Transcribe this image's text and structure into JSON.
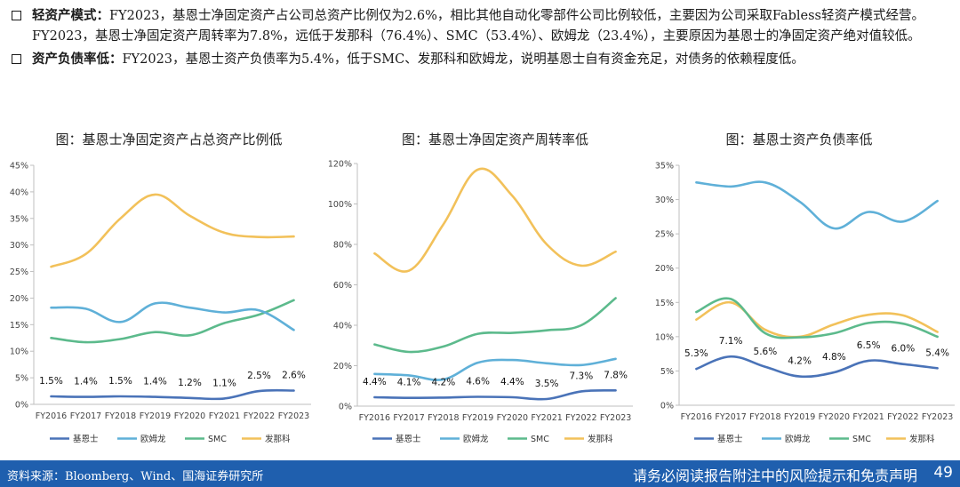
{
  "bullets": [
    {
      "lead": "轻资产模式：",
      "text": "FY2023，基恩士净固定资产占公司总资产比例仅为2.6%，相比其他自动化零部件公司比例较低，主要因为公司采取Fabless轻资产模式经营。FY2023，基恩士净固定资产周转率为7.8%，远低于发那科（76.4%）、SMC（53.4%）、欧姆龙（23.4%），主要原因为基恩士的净固定资产绝对值较低。"
    },
    {
      "lead": "资产负债率低：",
      "text": "FY2023，基恩士资产负债率为5.4%，低于SMC、发那科和欧姆龙，说明基恩士自有资金充足，对债务的依赖程度低。"
    }
  ],
  "colors": {
    "基恩士": "#4a73b8",
    "欧姆龙": "#5fb0d8",
    "SMC": "#5cba8c",
    "发那科": "#f2c15a",
    "footer": "#1f5fae"
  },
  "chart_data": [
    {
      "type": "line",
      "title": "图：基恩士净固定资产占总资产比例低",
      "categories": [
        "FY2016",
        "FY2017",
        "FY2018",
        "FY2019",
        "FY2020",
        "FY2021",
        "FY2022",
        "FY2023"
      ],
      "ylim": [
        0,
        45
      ],
      "yticks": [
        0,
        5,
        10,
        15,
        20,
        25,
        30,
        35,
        40,
        45
      ],
      "ytick_suffix": "%",
      "series": [
        {
          "name": "基恩士",
          "values": [
            1.5,
            1.4,
            1.5,
            1.4,
            1.2,
            1.1,
            2.5,
            2.6
          ],
          "labels": [
            "1.5%",
            "1.4%",
            "1.5%",
            "1.4%",
            "1.2%",
            "1.1%",
            "2.5%",
            "2.6%"
          ]
        },
        {
          "name": "欧姆龙",
          "values": [
            18.2,
            18.0,
            15.5,
            19.0,
            18.2,
            17.3,
            17.7,
            14.0
          ]
        },
        {
          "name": "SMC",
          "values": [
            12.5,
            11.7,
            12.3,
            13.6,
            13.0,
            15.3,
            16.9,
            19.6
          ]
        },
        {
          "name": "发那科",
          "values": [
            25.9,
            28.3,
            35.0,
            39.5,
            35.5,
            32.3,
            31.5,
            31.6
          ]
        }
      ],
      "legend": [
        "基恩士",
        "欧姆龙",
        "SMC",
        "发那科"
      ],
      "legend_position": "bottom",
      "grid": false
    },
    {
      "type": "line",
      "title": "图：基恩士净固定资产周转率低",
      "categories": [
        "FY2016",
        "FY2017",
        "FY2018",
        "FY2019",
        "FY2020",
        "FY2021",
        "FY2022",
        "FY2023"
      ],
      "ylim": [
        0,
        120
      ],
      "yticks": [
        0,
        20,
        40,
        60,
        80,
        100,
        120
      ],
      "ytick_suffix": "%",
      "series": [
        {
          "name": "基恩士",
          "values": [
            4.4,
            4.1,
            4.2,
            4.6,
            4.4,
            3.5,
            7.3,
            7.8
          ],
          "labels": [
            "4.4%",
            "4.1%",
            "4.2%",
            "4.6%",
            "4.4%",
            "3.5%",
            "7.3%",
            "7.8%"
          ]
        },
        {
          "name": "欧姆龙",
          "values": [
            15.9,
            15.2,
            13.2,
            21.5,
            22.8,
            21.2,
            20.3,
            23.4
          ]
        },
        {
          "name": "SMC",
          "values": [
            30.5,
            26.8,
            29.5,
            35.8,
            36.2,
            37.5,
            40.0,
            53.4
          ]
        },
        {
          "name": "发那科",
          "values": [
            75.5,
            67.0,
            90.0,
            117.0,
            104.0,
            80.0,
            69.5,
            76.4
          ]
        }
      ],
      "legend": [
        "基恩士",
        "欧姆龙",
        "SMC",
        "发那科"
      ],
      "legend_position": "bottom",
      "grid": false
    },
    {
      "type": "line",
      "title": "图：基恩士资产负债率低",
      "categories": [
        "FY2016",
        "FY2017",
        "FY2018",
        "FY2019",
        "FY2020",
        "FY2021",
        "FY2022",
        "FY2023"
      ],
      "ylim": [
        0,
        35
      ],
      "yticks": [
        0,
        5,
        10,
        15,
        20,
        25,
        30,
        35
      ],
      "ytick_suffix": "%",
      "series": [
        {
          "name": "基恩士",
          "values": [
            5.3,
            7.1,
            5.6,
            4.2,
            4.8,
            6.5,
            6.0,
            5.4
          ],
          "labels": [
            "5.3%",
            "7.1%",
            "5.6%",
            "4.2%",
            "4.8%",
            "6.5%",
            "6.0%",
            "5.4%"
          ]
        },
        {
          "name": "欧姆龙",
          "values": [
            32.5,
            31.9,
            32.5,
            29.7,
            25.8,
            28.2,
            26.8,
            29.8
          ]
        },
        {
          "name": "SMC",
          "values": [
            13.6,
            15.5,
            10.5,
            9.9,
            10.5,
            12.0,
            11.9,
            10.0
          ]
        },
        {
          "name": "发那科",
          "values": [
            12.5,
            15.0,
            11.0,
            10.0,
            11.8,
            13.2,
            13.1,
            10.7
          ]
        }
      ],
      "legend": [
        "基恩士",
        "欧姆龙",
        "SMC",
        "发那科"
      ],
      "legend_position": "bottom",
      "grid": false
    }
  ],
  "footer": {
    "source": "资料来源：Bloomberg、Wind、国海证券研究所",
    "disclaimer": "请务必阅读报告附注中的风险提示和免责声明",
    "page": "49"
  }
}
